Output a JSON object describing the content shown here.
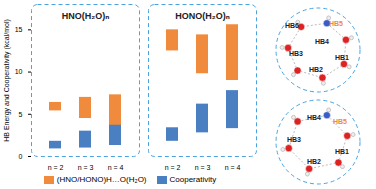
{
  "chart_data": {
    "type": "bar",
    "y_label": "HB Energy and Cooperativity (kcal/mol)",
    "ylim": [
      0,
      18
    ],
    "yticks": [
      0,
      5,
      10,
      15
    ],
    "panels": [
      "HNO(H₂O)ₙ",
      "HONO(H₂O)ₙ"
    ],
    "categories": [
      "n = 2",
      "n = 3",
      "n = 4"
    ],
    "series": [
      {
        "name": "(HNO/HONO)H…O(H₂O)",
        "color": "#f08a3c",
        "values": [
          [
            [
              5.4,
              6.4
            ],
            [
              4.5,
              7.0
            ],
            [
              3.3,
              7.3
            ]
          ],
          [
            [
              12.5,
              15.0
            ],
            [
              9.8,
              14.4
            ],
            [
              9.0,
              15.6
            ]
          ]
        ]
      },
      {
        "name": "Cooperativity",
        "color": "#4a7fc1",
        "values": [
          [
            [
              0.9,
              1.8
            ],
            [
              1.0,
              3.0
            ],
            [
              1.3,
              3.7
            ]
          ],
          [
            [
              1.8,
              3.4
            ],
            [
              2.8,
              6.2
            ],
            [
              3.3,
              7.8
            ]
          ]
        ]
      }
    ],
    "legend": "bottom"
  },
  "diagrams": [
    {
      "labels": [
        {
          "text": "HB6",
          "color": "#222222"
        },
        {
          "text": "HB5",
          "color": "#f08a3c"
        },
        {
          "text": "HB4",
          "color": "#222222"
        },
        {
          "text": "HB3",
          "color": "#222222"
        },
        {
          "text": "HB2",
          "color": "#222222"
        },
        {
          "text": "HB1",
          "color": "#222222"
        }
      ]
    },
    {
      "labels": [
        {
          "text": "HB4",
          "color": "#222222"
        },
        {
          "text": "HB5",
          "color": "#f08a3c"
        },
        {
          "text": "HB3",
          "color": "#222222"
        },
        {
          "text": "HB2",
          "color": "#222222"
        },
        {
          "text": "HB1",
          "color": "#222222"
        }
      ]
    }
  ]
}
